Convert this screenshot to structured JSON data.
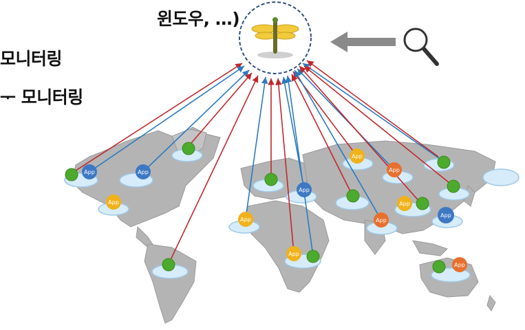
{
  "text_lines": [
    "윈도우, …)",
    "모니터링",
    "ᅮ 모니터링"
  ],
  "app_badge_label": "App",
  "colors": {
    "red_line": "#c0282c",
    "blue_line": "#2a7ac0",
    "green_node": "#4caa2c",
    "blue_app": "#3e78c4",
    "yellow_app": "#f0b21a",
    "orange_app": "#e8702e",
    "map_land": "#b4b4b4",
    "cloud": "#d6ecfa",
    "cloud_edge": "#9fc8e8",
    "arrow": "#8a8a8a",
    "hub_border": "#2f4f7f"
  },
  "icons": [
    "dragonfly-icon",
    "magnifier-icon",
    "left-arrow-icon",
    "world-map",
    "cloud-icon"
  ]
}
